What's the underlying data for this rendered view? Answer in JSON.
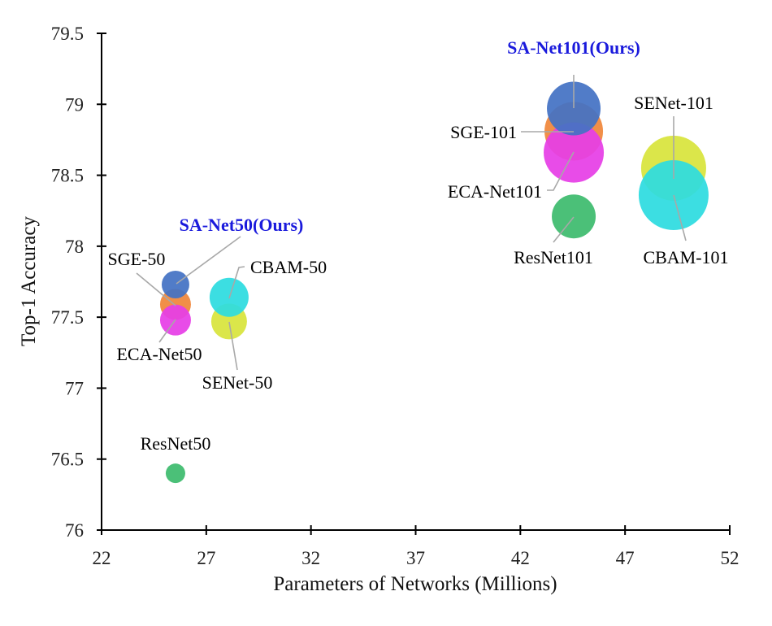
{
  "chart_data": {
    "type": "scatter",
    "subtype": "bubble",
    "title": "",
    "xlabel": "Parameters of Networks  (Millions)",
    "ylabel": "Top-1 Accuracy",
    "xlim": [
      22,
      52
    ],
    "ylim": [
      76,
      79.5
    ],
    "xticks": [
      "22",
      "27",
      "32",
      "37",
      "42",
      "47",
      "52"
    ],
    "yticks": [
      "76",
      "76.5",
      "77",
      "77.5",
      "78",
      "78.5",
      "79",
      "79.5"
    ],
    "grid": false,
    "legend": "none",
    "points": [
      {
        "label": "ResNet50",
        "x": 25.53,
        "y": 76.4,
        "size": 12,
        "color": "#3dbb6e",
        "label_color": "#000000",
        "bold": false
      },
      {
        "label": "SGE-50",
        "x": 25.53,
        "y": 77.59,
        "size": 19,
        "color": "#f0873a",
        "label_color": "#000000",
        "bold": false
      },
      {
        "label": "ECA-Net50",
        "x": 25.53,
        "y": 77.48,
        "size": 19,
        "color": "#e63ee6",
        "label_color": "#000000",
        "bold": false
      },
      {
        "label": "SA-Net50(Ours)",
        "x": 25.53,
        "y": 77.73,
        "size": 17,
        "color": "#4472c4",
        "label_color": "#1a1adc",
        "bold": true
      },
      {
        "label": "SENet-50",
        "x": 28.09,
        "y": 77.47,
        "size": 22,
        "color": "#d8e43c",
        "label_color": "#000000",
        "bold": false
      },
      {
        "label": "CBAM-50",
        "x": 28.09,
        "y": 77.64,
        "size": 24,
        "color": "#2ddce0",
        "label_color": "#000000",
        "bold": false
      },
      {
        "label": "ResNet101",
        "x": 44.55,
        "y": 78.21,
        "size": 27,
        "color": "#3dbb6e",
        "label_color": "#000000",
        "bold": false
      },
      {
        "label": "SGE-101",
        "x": 44.55,
        "y": 78.81,
        "size": 36,
        "color": "#f0873a",
        "label_color": "#000000",
        "bold": false
      },
      {
        "label": "ECA-Net101",
        "x": 44.55,
        "y": 78.66,
        "size": 37,
        "color": "#e63ee6",
        "label_color": "#000000",
        "bold": false
      },
      {
        "label": "SA-Net101(Ours)",
        "x": 44.55,
        "y": 78.97,
        "size": 33,
        "color": "#4472c4",
        "label_color": "#1a1adc",
        "bold": true
      },
      {
        "label": "SENet-101",
        "x": 49.32,
        "y": 78.55,
        "size": 40,
        "color": "#d8e43c",
        "label_color": "#000000",
        "bold": false
      },
      {
        "label": "CBAM-101",
        "x": 49.32,
        "y": 78.36,
        "size": 43,
        "color": "#2ddce0",
        "label_color": "#000000",
        "bold": false
      }
    ]
  }
}
